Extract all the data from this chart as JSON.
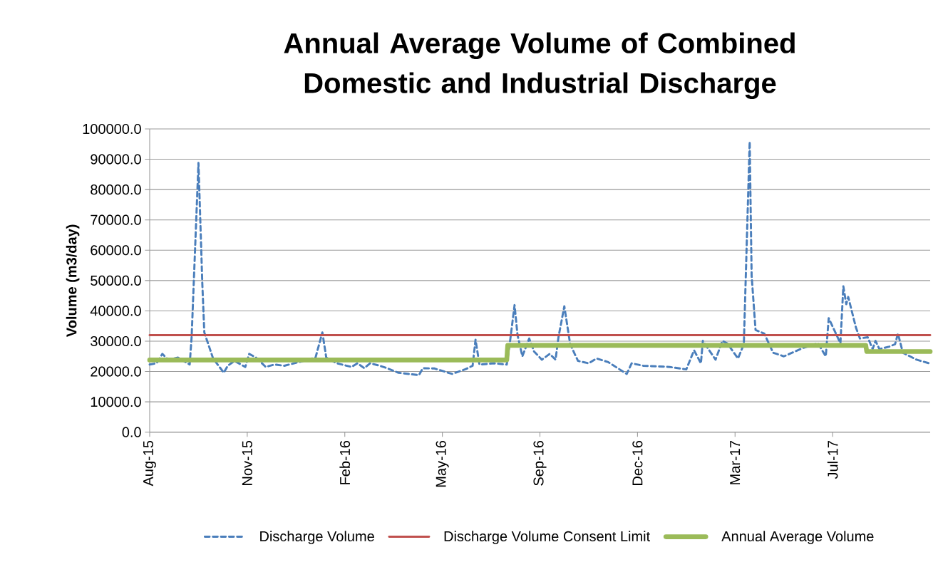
{
  "chart_data": {
    "type": "line",
    "title": "Annual Average Volume of Combined Domestic and Industrial Discharge",
    "ylabel": "Volume  (m3/day)",
    "xlim": [
      "2015-08-01",
      "2017-10-09"
    ],
    "ylim": [
      0,
      100000
    ],
    "xticks": [
      {
        "value": "2015-08-01",
        "label": "Aug-15"
      },
      {
        "value": "2015-11-09",
        "label": "Nov-15"
      },
      {
        "value": "2016-02-17",
        "label": "Feb-16"
      },
      {
        "value": "2016-05-27",
        "label": "May-16"
      },
      {
        "value": "2016-09-04",
        "label": "Sep-16"
      },
      {
        "value": "2016-12-13",
        "label": "Dec-16"
      },
      {
        "value": "2017-03-23",
        "label": "Mar-17"
      },
      {
        "value": "2017-07-01",
        "label": "Jul-17"
      }
    ],
    "yticks": [
      {
        "value": 0,
        "label": "0.0"
      },
      {
        "value": 10000,
        "label": "10000.0"
      },
      {
        "value": 20000,
        "label": "20000.0"
      },
      {
        "value": 30000,
        "label": "30000.0"
      },
      {
        "value": 40000,
        "label": "40000.0"
      },
      {
        "value": 50000,
        "label": "50000.0"
      },
      {
        "value": 60000,
        "label": "60000.0"
      },
      {
        "value": 70000,
        "label": "70000.0"
      },
      {
        "value": 80000,
        "label": "80000.0"
      },
      {
        "value": 90000,
        "label": "90000.0"
      },
      {
        "value": 100000,
        "label": "100000.0"
      }
    ],
    "grid": "y",
    "legend": "bottom",
    "series": [
      {
        "name": "Discharge Volume",
        "color": "#4a7ebb",
        "line_style": "dashed",
        "x": [
          "2015-08-01",
          "2015-08-08",
          "2015-08-14",
          "2015-08-20",
          "2015-08-30",
          "2015-09-11",
          "2015-09-13",
          "2015-09-20",
          "2015-09-24",
          "2015-09-26",
          "2015-10-05",
          "2015-10-16",
          "2015-10-20",
          "2015-10-27",
          "2015-11-07",
          "2015-11-11",
          "2015-11-18",
          "2015-11-28",
          "2015-12-07",
          "2015-12-17",
          "2016-01-01",
          "2016-01-18",
          "2016-01-25",
          "2016-01-29",
          "2016-02-09",
          "2016-02-24",
          "2016-03-01",
          "2016-03-08",
          "2016-03-14",
          "2016-03-24",
          "2016-04-01",
          "2016-04-12",
          "2016-05-03",
          "2016-05-07",
          "2016-05-19",
          "2016-06-06",
          "2016-06-20",
          "2016-06-27",
          "2016-06-30",
          "2016-07-04",
          "2016-07-19",
          "2016-08-01",
          "2016-08-04",
          "2016-08-09",
          "2016-08-12",
          "2016-08-17",
          "2016-08-24",
          "2016-08-29",
          "2016-09-06",
          "2016-09-14",
          "2016-09-20",
          "2016-09-23",
          "2016-09-29",
          "2016-10-05",
          "2016-10-13",
          "2016-10-24",
          "2016-11-01",
          "2016-11-13",
          "2016-12-02",
          "2016-12-07",
          "2016-12-19",
          "2017-01-15",
          "2017-02-01",
          "2017-02-09",
          "2017-02-16",
          "2017-02-18",
          "2017-03-03",
          "2017-03-10",
          "2017-03-15",
          "2017-03-26",
          "2017-04-01",
          "2017-04-07",
          "2017-04-09",
          "2017-04-13",
          "2017-04-22",
          "2017-05-01",
          "2017-05-12",
          "2017-06-01",
          "2017-06-16",
          "2017-06-24",
          "2017-06-27",
          "2017-07-09",
          "2017-07-12",
          "2017-07-15",
          "2017-07-17",
          "2017-07-25",
          "2017-07-29",
          "2017-08-06",
          "2017-08-11",
          "2017-08-14",
          "2017-08-18",
          "2017-08-28",
          "2017-09-03",
          "2017-09-06",
          "2017-09-11",
          "2017-09-25",
          "2017-10-08"
        ],
        "values": [
          22300,
          22700,
          25800,
          23900,
          24600,
          22300,
          31400,
          88800,
          48500,
          32900,
          24300,
          19600,
          21900,
          23500,
          21500,
          25800,
          24600,
          21500,
          22300,
          21900,
          23100,
          24600,
          32900,
          24600,
          22700,
          21500,
          22700,
          21100,
          22700,
          21900,
          21000,
          19600,
          18800,
          21100,
          21000,
          19200,
          20800,
          21900,
          30500,
          22300,
          22700,
          22300,
          29000,
          41900,
          32100,
          25000,
          30900,
          26600,
          23900,
          25800,
          23900,
          31300,
          41500,
          29000,
          23500,
          22700,
          24300,
          23100,
          19200,
          22700,
          21900,
          21500,
          20700,
          27000,
          22700,
          30100,
          23900,
          30100,
          29300,
          24300,
          29000,
          95800,
          51600,
          33700,
          32500,
          26200,
          25000,
          27800,
          29300,
          25000,
          37600,
          29300,
          48100,
          42200,
          44600,
          34400,
          30900,
          31300,
          27400,
          30100,
          27400,
          28200,
          29000,
          32500,
          26200,
          23900,
          22700
        ]
      },
      {
        "name": "Discharge Volume Consent Limit",
        "color": "#c0504d",
        "line_style": "solid",
        "x": [
          "2015-08-01",
          "2017-10-09"
        ],
        "values": [
          32000,
          32000
        ]
      },
      {
        "name": "Annual Average Volume",
        "color": "#9bbb59",
        "line_style": "solid",
        "x": [
          "2015-08-01",
          "2016-08-01",
          "2016-08-02",
          "2017-08-04",
          "2017-08-05",
          "2017-10-09"
        ],
        "values": [
          23800,
          23800,
          28600,
          28600,
          26600,
          26600
        ]
      }
    ]
  }
}
